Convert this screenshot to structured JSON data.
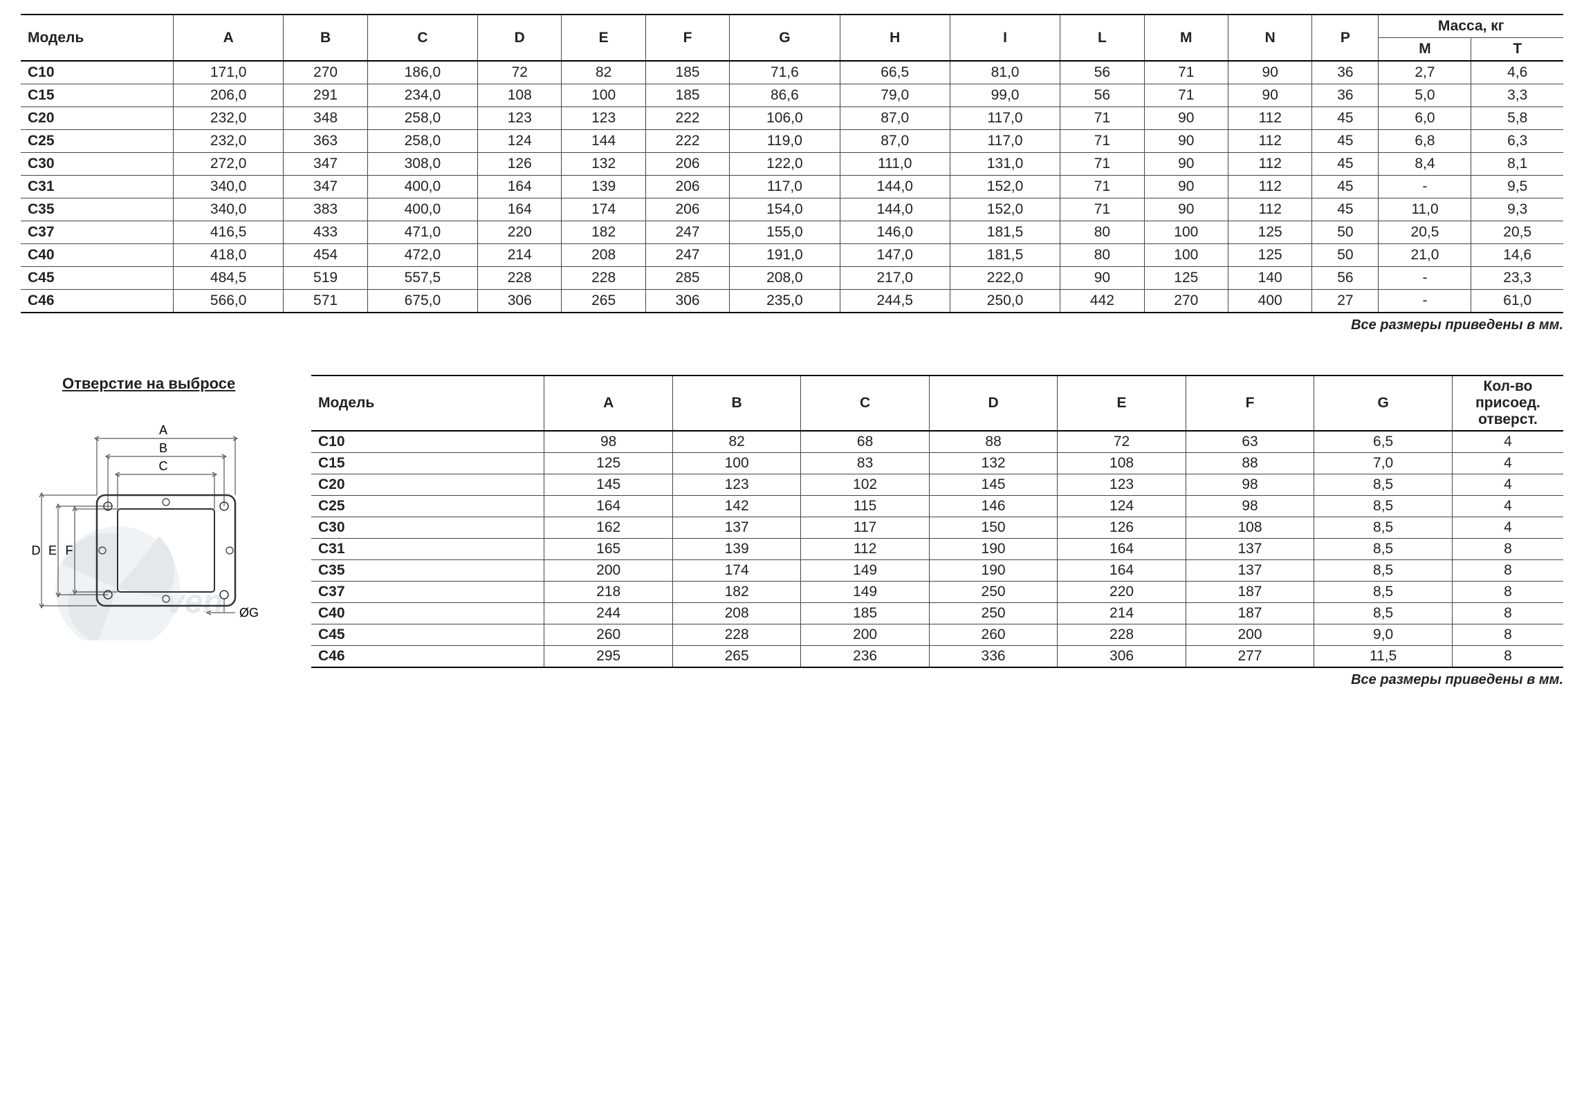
{
  "table1": {
    "headers": {
      "model": "Модель",
      "A": "A",
      "B": "B",
      "C": "C",
      "D": "D",
      "E": "E",
      "F": "F",
      "G": "G",
      "H": "H",
      "I": "I",
      "L": "L",
      "M": "M",
      "N": "N",
      "P": "P",
      "mass": "Масса, кг",
      "massM": "M",
      "massT": "T"
    },
    "rows": [
      {
        "model": "C10",
        "A": "171,0",
        "B": "270",
        "C": "186,0",
        "D": "72",
        "E": "82",
        "F": "185",
        "G": "71,6",
        "H": "66,5",
        "I": "81,0",
        "L": "56",
        "M": "71",
        "N": "90",
        "P": "36",
        "mM": "2,7",
        "mT": "4,6"
      },
      {
        "model": "C15",
        "A": "206,0",
        "B": "291",
        "C": "234,0",
        "D": "108",
        "E": "100",
        "F": "185",
        "G": "86,6",
        "H": "79,0",
        "I": "99,0",
        "L": "56",
        "M": "71",
        "N": "90",
        "P": "36",
        "mM": "5,0",
        "mT": "3,3"
      },
      {
        "model": "C20",
        "A": "232,0",
        "B": "348",
        "C": "258,0",
        "D": "123",
        "E": "123",
        "F": "222",
        "G": "106,0",
        "H": "87,0",
        "I": "117,0",
        "L": "71",
        "M": "90",
        "N": "112",
        "P": "45",
        "mM": "6,0",
        "mT": "5,8"
      },
      {
        "model": "C25",
        "A": "232,0",
        "B": "363",
        "C": "258,0",
        "D": "124",
        "E": "144",
        "F": "222",
        "G": "119,0",
        "H": "87,0",
        "I": "117,0",
        "L": "71",
        "M": "90",
        "N": "112",
        "P": "45",
        "mM": "6,8",
        "mT": "6,3"
      },
      {
        "model": "C30",
        "A": "272,0",
        "B": "347",
        "C": "308,0",
        "D": "126",
        "E": "132",
        "F": "206",
        "G": "122,0",
        "H": "111,0",
        "I": "131,0",
        "L": "71",
        "M": "90",
        "N": "112",
        "P": "45",
        "mM": "8,4",
        "mT": "8,1"
      },
      {
        "model": "C31",
        "A": "340,0",
        "B": "347",
        "C": "400,0",
        "D": "164",
        "E": "139",
        "F": "206",
        "G": "117,0",
        "H": "144,0",
        "I": "152,0",
        "L": "71",
        "M": "90",
        "N": "112",
        "P": "45",
        "mM": "-",
        "mT": "9,5"
      },
      {
        "model": "C35",
        "A": "340,0",
        "B": "383",
        "C": "400,0",
        "D": "164",
        "E": "174",
        "F": "206",
        "G": "154,0",
        "H": "144,0",
        "I": "152,0",
        "L": "71",
        "M": "90",
        "N": "112",
        "P": "45",
        "mM": "11,0",
        "mT": "9,3"
      },
      {
        "model": "C37",
        "A": "416,5",
        "B": "433",
        "C": "471,0",
        "D": "220",
        "E": "182",
        "F": "247",
        "G": "155,0",
        "H": "146,0",
        "I": "181,5",
        "L": "80",
        "M": "100",
        "N": "125",
        "P": "50",
        "mM": "20,5",
        "mT": "20,5"
      },
      {
        "model": "C40",
        "A": "418,0",
        "B": "454",
        "C": "472,0",
        "D": "214",
        "E": "208",
        "F": "247",
        "G": "191,0",
        "H": "147,0",
        "I": "181,5",
        "L": "80",
        "M": "100",
        "N": "125",
        "P": "50",
        "mM": "21,0",
        "mT": "14,6"
      },
      {
        "model": "C45",
        "A": "484,5",
        "B": "519",
        "C": "557,5",
        "D": "228",
        "E": "228",
        "F": "285",
        "G": "208,0",
        "H": "217,0",
        "I": "222,0",
        "L": "90",
        "M": "125",
        "N": "140",
        "P": "56",
        "mM": "-",
        "mT": "23,3"
      },
      {
        "model": "C46",
        "A": "566,0",
        "B": "571",
        "C": "675,0",
        "D": "306",
        "E": "265",
        "F": "306",
        "G": "235,0",
        "H": "244,5",
        "I": "250,0",
        "L": "442",
        "M": "270",
        "N": "400",
        "P": "27",
        "mM": "-",
        "mT": "61,0"
      }
    ]
  },
  "footnote": "Все размеры приведены в мм.",
  "diagram": {
    "title": "Отверстие на выбросе",
    "labels": {
      "A": "A",
      "B": "B",
      "C": "C",
      "D": "D",
      "E": "E",
      "F": "F",
      "G": "ØG"
    }
  },
  "table2": {
    "headers": {
      "model": "Модель",
      "A": "A",
      "B": "B",
      "C": "C",
      "D": "D",
      "E": "E",
      "F": "F",
      "G": "G",
      "holes": "Кол-во присоед. отверст."
    },
    "rows": [
      {
        "model": "C10",
        "A": "98",
        "B": "82",
        "C": "68",
        "D": "88",
        "E": "72",
        "F": "63",
        "G": "6,5",
        "holes": "4"
      },
      {
        "model": "C15",
        "A": "125",
        "B": "100",
        "C": "83",
        "D": "132",
        "E": "108",
        "F": "88",
        "G": "7,0",
        "holes": "4"
      },
      {
        "model": "C20",
        "A": "145",
        "B": "123",
        "C": "102",
        "D": "145",
        "E": "123",
        "F": "98",
        "G": "8,5",
        "holes": "4"
      },
      {
        "model": "C25",
        "A": "164",
        "B": "142",
        "C": "115",
        "D": "146",
        "E": "124",
        "F": "98",
        "G": "8,5",
        "holes": "4"
      },
      {
        "model": "C30",
        "A": "162",
        "B": "137",
        "C": "117",
        "D": "150",
        "E": "126",
        "F": "108",
        "G": "8,5",
        "holes": "4"
      },
      {
        "model": "C31",
        "A": "165",
        "B": "139",
        "C": "112",
        "D": "190",
        "E": "164",
        "F": "137",
        "G": "8,5",
        "holes": "8"
      },
      {
        "model": "C35",
        "A": "200",
        "B": "174",
        "C": "149",
        "D": "190",
        "E": "164",
        "F": "137",
        "G": "8,5",
        "holes": "8"
      },
      {
        "model": "C37",
        "A": "218",
        "B": "182",
        "C": "149",
        "D": "250",
        "E": "220",
        "F": "187",
        "G": "8,5",
        "holes": "8"
      },
      {
        "model": "C40",
        "A": "244",
        "B": "208",
        "C": "185",
        "D": "250",
        "E": "214",
        "F": "187",
        "G": "8,5",
        "holes": "8"
      },
      {
        "model": "C45",
        "A": "260",
        "B": "228",
        "C": "200",
        "D": "260",
        "E": "228",
        "F": "200",
        "G": "9,0",
        "holes": "8"
      },
      {
        "model": "C46",
        "A": "295",
        "B": "265",
        "C": "236",
        "D": "336",
        "E": "306",
        "F": "277",
        "G": "11,5",
        "holes": "8"
      }
    ]
  },
  "style": {
    "border_color": "#444",
    "thick_border": "#000",
    "bg": "#ffffff",
    "text": "#222",
    "watermark_fill": "#d8e6ec",
    "watermark_blade": "#c3ced3",
    "font_size_table": 21,
    "font_size_footnote": 20,
    "font_size_title": 22
  }
}
